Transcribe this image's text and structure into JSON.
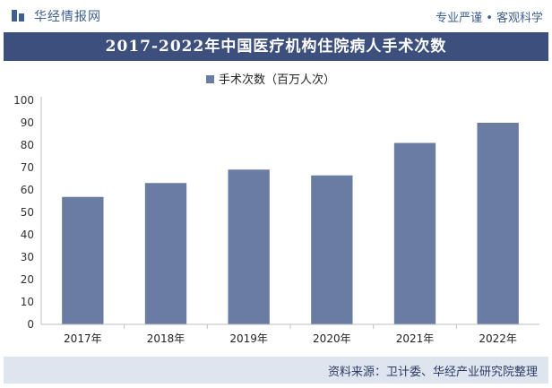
{
  "header": {
    "brand": "华经情报网",
    "tagline": "专业严谨 • 客观科学"
  },
  "title": "2017-2022年中国医疗机构住院病人手术次数",
  "footer": {
    "source": "资料来源：卫计委、华经产业研究院整理"
  },
  "colors": {
    "bar": "#6b7ca3",
    "title_bg": "#3d4f7c",
    "footer_bg": "#dfe5ef",
    "brand": "#3f5f8e"
  },
  "chart_data": {
    "type": "bar",
    "categories": [
      "2017年",
      "2018年",
      "2019年",
      "2020年",
      "2021年",
      "2022年"
    ],
    "series": [
      {
        "name": "手术次数（百万人次）",
        "values": [
          56.9,
          63.1,
          69.1,
          66.5,
          81.0,
          90.0
        ]
      }
    ],
    "ylim": [
      0,
      100
    ],
    "yticks": [
      0,
      10,
      20,
      30,
      40,
      50,
      60,
      70,
      80,
      90,
      100
    ],
    "legend_position": "top-center",
    "grid": false
  }
}
